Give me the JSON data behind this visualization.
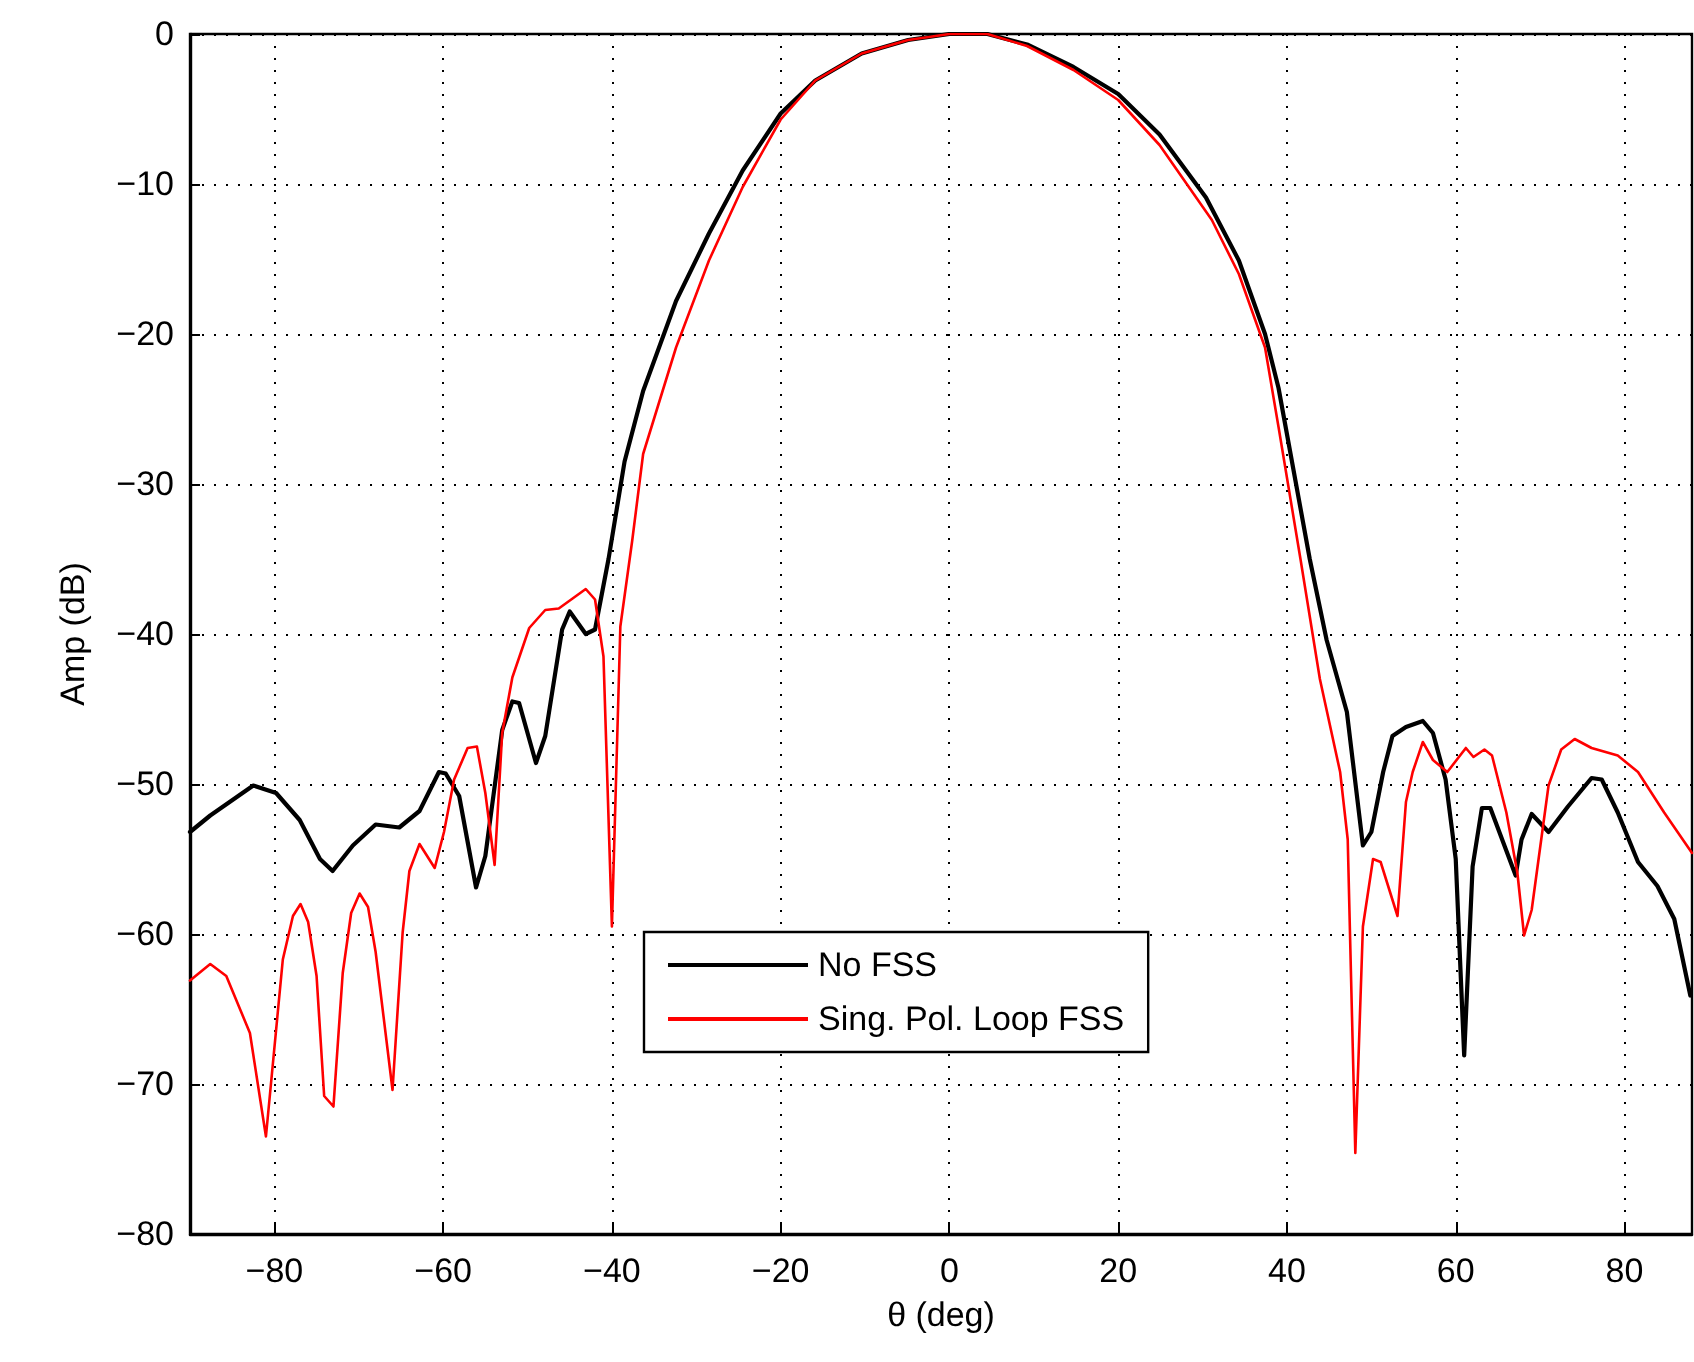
{
  "chart_data": {
    "type": "line",
    "xlabel": "θ (deg)",
    "ylabel": "Amp (dB)",
    "xlim": [
      -90,
      88
    ],
    "ylim": [
      -80,
      0
    ],
    "xticks": [
      -80,
      -60,
      -40,
      -20,
      0,
      20,
      40,
      60,
      80
    ],
    "yticks": [
      -80,
      -70,
      -60,
      -50,
      -40,
      -30,
      -20,
      -10,
      0
    ],
    "grid": true,
    "legend": "bottom",
    "marker": "none",
    "line_style": "solid",
    "series": [
      {
        "name": "No FSS",
        "color": "#000000",
        "x": [
          -90,
          -87.6,
          -82.5,
          -79.8,
          -77,
          -74.6,
          -73.1,
          -70.7,
          -68,
          -65.2,
          -62.8,
          -60.5,
          -59.7,
          -58.1,
          -56.1,
          -55,
          -53,
          -51.8,
          -51,
          -49,
          -47.9,
          -45.9,
          -45,
          -43.1,
          -42,
          -40.4,
          -38.5,
          -36.3,
          -32.4,
          -28.5,
          -24.5,
          -20,
          -15.9,
          -10.4,
          -4.9,
          0,
          4.5,
          9.2,
          14.7,
          20,
          24.9,
          30.4,
          34.3,
          37.4,
          39,
          42.7,
          44.7,
          47.1,
          49,
          50,
          51.4,
          52.5,
          54.1,
          56.1,
          57.3,
          58.8,
          60,
          61,
          62,
          63.1,
          64.1,
          65.5,
          67.1,
          67.8,
          69,
          71,
          73.3,
          76.1,
          77.3,
          79.2,
          81.6,
          83.9,
          85.9,
          87.8
        ],
        "values": [
          -53.2,
          -52.1,
          -50.1,
          -50.6,
          -52.4,
          -55,
          -55.8,
          -54.1,
          -52.7,
          -52.9,
          -51.8,
          -49.2,
          -49.3,
          -50.8,
          -56.9,
          -54.8,
          -46.4,
          -44.5,
          -44.6,
          -48.6,
          -46.8,
          -39.7,
          -38.5,
          -40,
          -39.7,
          -35,
          -28.5,
          -23.8,
          -17.8,
          -13.3,
          -9.1,
          -5.3,
          -3.1,
          -1.3,
          -0.4,
          0,
          0,
          -0.7,
          -2.2,
          -4,
          -6.7,
          -10.9,
          -15.1,
          -20,
          -23.6,
          -35,
          -40.4,
          -45.2,
          -54.1,
          -53.2,
          -49.2,
          -46.8,
          -46.2,
          -45.8,
          -46.6,
          -49.7,
          -55,
          -68.1,
          -55.5,
          -51.6,
          -51.6,
          -53.7,
          -56.1,
          -53.7,
          -52,
          -53.2,
          -51.5,
          -49.6,
          -49.7,
          -51.9,
          -55.2,
          -56.8,
          -59,
          -64.1
        ]
      },
      {
        "name": "Sing. Pol. Loop FSS",
        "color": "#ff0000",
        "x": [
          -90,
          -87.6,
          -85.7,
          -82.9,
          -81,
          -79,
          -77.8,
          -76.9,
          -76,
          -75,
          -74.1,
          -73,
          -71.9,
          -70.9,
          -69.9,
          -68.9,
          -68,
          -66,
          -64.8,
          -64,
          -62.8,
          -61,
          -59.9,
          -58.7,
          -57.1,
          -56,
          -55,
          -53.9,
          -53,
          -51.8,
          -49.8,
          -47.9,
          -46.3,
          -43.1,
          -42,
          -41,
          -40,
          -39,
          -37.6,
          -36.3,
          -32.4,
          -28.5,
          -24.5,
          -20,
          -15.9,
          -10.4,
          -4.9,
          0,
          4.5,
          9.2,
          14.7,
          20,
          24.9,
          31.1,
          34.3,
          37.4,
          39,
          41.6,
          43.9,
          46.3,
          47.2,
          48.1,
          49,
          50.2,
          51.1,
          53.1,
          54.1,
          54.9,
          56.1,
          57.3,
          59,
          61.2,
          62.1,
          63.4,
          64.3,
          66,
          67.3,
          68.1,
          69,
          71,
          72.5,
          74.1,
          76.1,
          79.2,
          81.6,
          84.7,
          88
        ],
        "values": [
          -63.1,
          -62,
          -62.8,
          -66.6,
          -73.5,
          -61.7,
          -58.8,
          -58,
          -59.2,
          -62.8,
          -70.8,
          -71.5,
          -62.6,
          -58.6,
          -57.3,
          -58.2,
          -61.2,
          -70.4,
          -59.9,
          -55.8,
          -54,
          -55.6,
          -53.2,
          -49.7,
          -47.6,
          -47.5,
          -50.6,
          -55.4,
          -46.6,
          -42.9,
          -39.6,
          -38.4,
          -38.3,
          -37,
          -37.7,
          -41.5,
          -59.5,
          -39.5,
          -33.8,
          -28,
          -20.9,
          -15.1,
          -10.2,
          -5.7,
          -3.1,
          -1.3,
          -0.4,
          0,
          0,
          -0.8,
          -2.4,
          -4.4,
          -7.4,
          -12.4,
          -16,
          -20.9,
          -26.2,
          -35,
          -43,
          -49.2,
          -53.7,
          -74.6,
          -59.5,
          -55,
          -55.2,
          -58.8,
          -51.2,
          -49.2,
          -47.2,
          -48.4,
          -49.2,
          -47.6,
          -48.2,
          -47.7,
          -48.1,
          -51.9,
          -55.9,
          -60.1,
          -58.4,
          -50.1,
          -47.7,
          -47,
          -47.6,
          -48.1,
          -49.2,
          -51.9,
          -54.6
        ]
      }
    ]
  }
}
